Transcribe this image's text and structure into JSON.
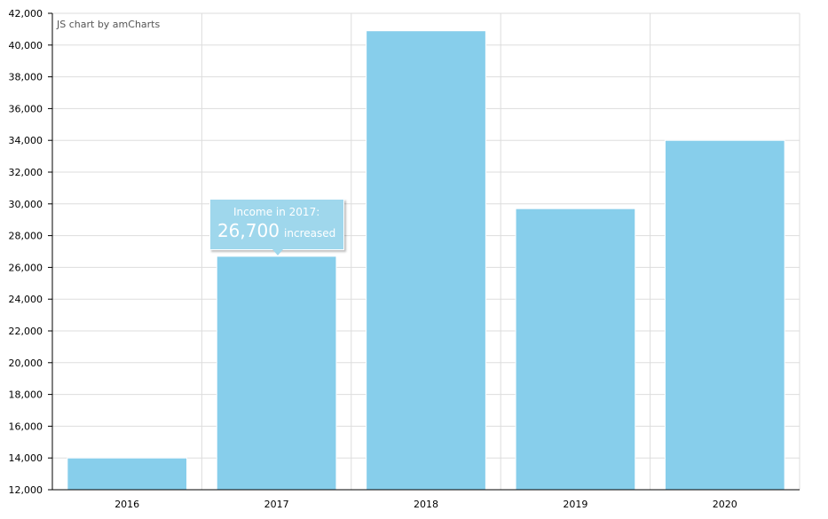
{
  "chart_data": {
    "type": "bar",
    "categories": [
      "2016",
      "2017",
      "2018",
      "2019",
      "2020"
    ],
    "values": [
      14000,
      26700,
      40900,
      29700,
      34000
    ],
    "ylim": [
      12000,
      42000
    ],
    "y_ticks": [
      "12,000",
      "14,000",
      "16,000",
      "18,000",
      "20,000",
      "22,000",
      "24,000",
      "26,000",
      "28,000",
      "30,000",
      "32,000",
      "34,000",
      "36,000",
      "38,000",
      "40,000",
      "42,000"
    ],
    "grid": true,
    "bar_color": "#87ceeb",
    "credit": "JS chart by amCharts",
    "tooltip": {
      "title": "Income in 2017:",
      "value": "26,700",
      "suffix": "increased"
    }
  }
}
